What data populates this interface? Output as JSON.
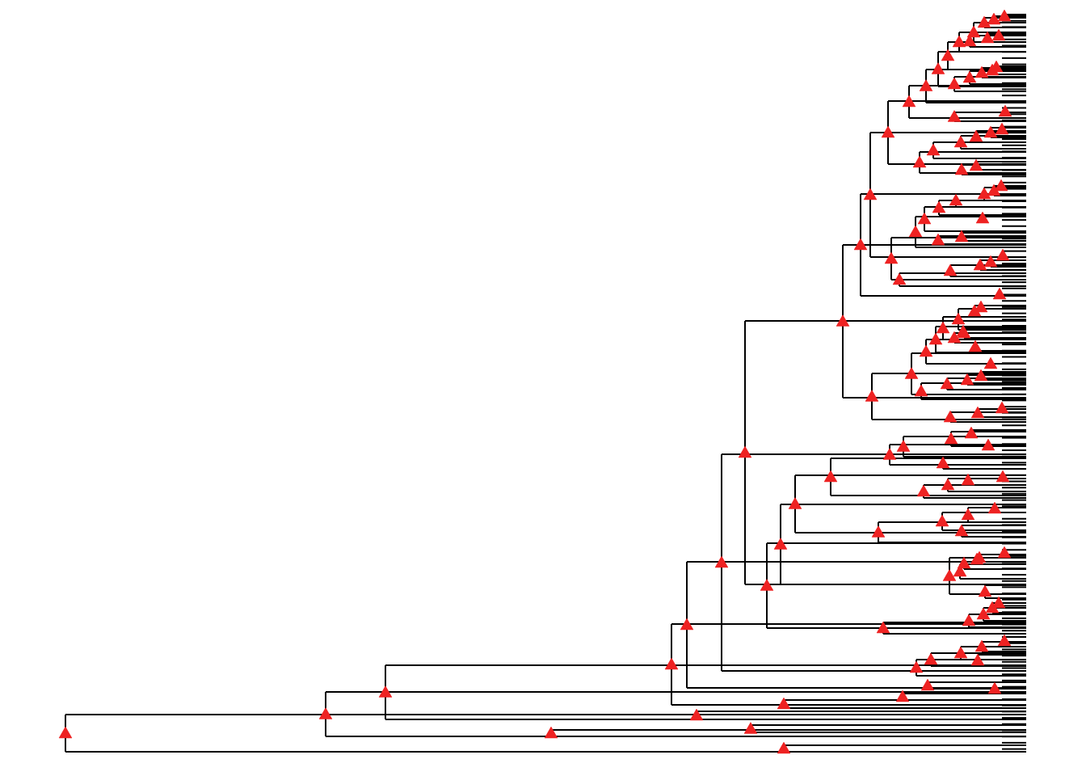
{
  "colors": {
    "background": "#ffffff",
    "branch": "#000000",
    "marker": "#ee2222"
  },
  "marker_shape": "triangle-icon",
  "tree": {
    "type": "phylogenetic-dendrogram",
    "orientation": "left-to-right",
    "tip_count": 120,
    "tip_labels_visible": false,
    "axis_visible": false
  }
}
